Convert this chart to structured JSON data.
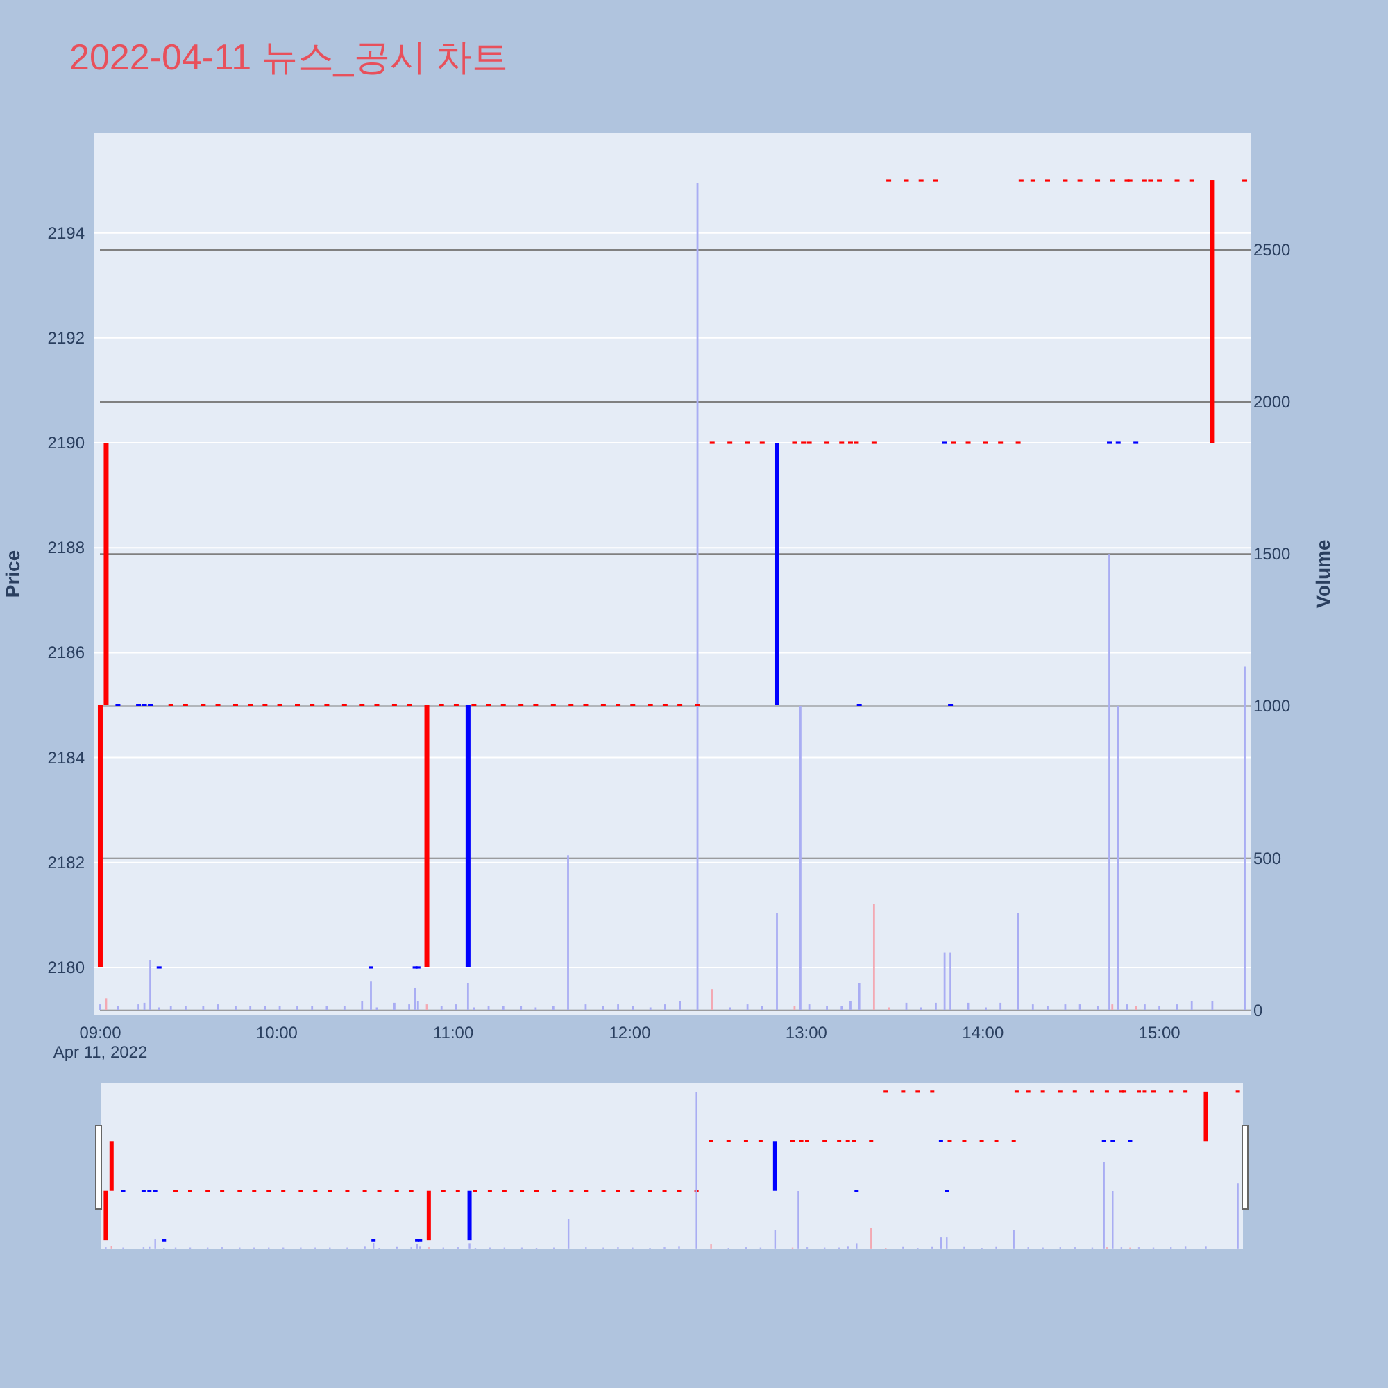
{
  "chart_data": {
    "type": "candlestick",
    "title": "2022-04-11 뉴스_공시 차트",
    "ylabel": "Price",
    "y2label": "Volume",
    "xlim": [
      "2022-04-11T08:58",
      "2022-04-11T15:31"
    ],
    "xticks": [
      {
        "value": "2022-04-11T09:00",
        "label": "09:00"
      },
      {
        "value": "2022-04-11T10:00",
        "label": "10:00"
      },
      {
        "value": "2022-04-11T11:00",
        "label": "11:00"
      },
      {
        "value": "2022-04-11T12:00",
        "label": "12:00"
      },
      {
        "value": "2022-04-11T13:00",
        "label": "13:00"
      },
      {
        "value": "2022-04-11T14:00",
        "label": "14:00"
      },
      {
        "value": "2022-04-11T15:00",
        "label": "15:00"
      }
    ],
    "ylim": [
      2179.1,
      2195.9
    ],
    "yticks": [
      2180,
      2182,
      2184,
      2186,
      2188,
      2190,
      2192,
      2194
    ],
    "y2lim": [
      -14,
      2883
    ],
    "y2ticks": [
      0,
      500,
      1000,
      1500,
      2000,
      2500
    ],
    "grid": "y",
    "annotations": [
      "Apr 11, 2022"
    ],
    "series": [
      {
        "type": "candlestick",
        "x": [
          "2022-04-11T09:00",
          "2022-04-11T09:02",
          "2022-04-11T09:06",
          "2022-04-11T09:13",
          "2022-04-11T09:15",
          "2022-04-11T09:17",
          "2022-04-11T09:20",
          "2022-04-11T09:24",
          "2022-04-11T09:29",
          "2022-04-11T09:35",
          "2022-04-11T09:40",
          "2022-04-11T09:46",
          "2022-04-11T09:51",
          "2022-04-11T09:56",
          "2022-04-11T10:01",
          "2022-04-11T10:07",
          "2022-04-11T10:12",
          "2022-04-11T10:17",
          "2022-04-11T10:23",
          "2022-04-11T10:29",
          "2022-04-11T10:32",
          "2022-04-11T10:34",
          "2022-04-11T10:40",
          "2022-04-11T10:45",
          "2022-04-11T10:47",
          "2022-04-11T10:48",
          "2022-04-11T10:51",
          "2022-04-11T10:56",
          "2022-04-11T11:01",
          "2022-04-11T11:05",
          "2022-04-11T11:07",
          "2022-04-11T11:12",
          "2022-04-11T11:17",
          "2022-04-11T11:23",
          "2022-04-11T11:28",
          "2022-04-11T11:34",
          "2022-04-11T11:40",
          "2022-04-11T11:45",
          "2022-04-11T11:51",
          "2022-04-11T11:56",
          "2022-04-11T12:01",
          "2022-04-11T12:07",
          "2022-04-11T12:12",
          "2022-04-11T12:17",
          "2022-04-11T12:23",
          "2022-04-11T12:28",
          "2022-04-11T12:34",
          "2022-04-11T12:40",
          "2022-04-11T12:45",
          "2022-04-11T12:50",
          "2022-04-11T12:56",
          "2022-04-11T12:59",
          "2022-04-11T13:01",
          "2022-04-11T13:07",
          "2022-04-11T13:12",
          "2022-04-11T13:15",
          "2022-04-11T13:17",
          "2022-04-11T13:18",
          "2022-04-11T13:23",
          "2022-04-11T13:28",
          "2022-04-11T13:34",
          "2022-04-11T13:39",
          "2022-04-11T13:44",
          "2022-04-11T13:47",
          "2022-04-11T13:49",
          "2022-04-11T13:50",
          "2022-04-11T13:55",
          "2022-04-11T14:01",
          "2022-04-11T14:06",
          "2022-04-11T14:12",
          "2022-04-11T14:13",
          "2022-04-11T14:17",
          "2022-04-11T14:22",
          "2022-04-11T14:28",
          "2022-04-11T14:33",
          "2022-04-11T14:39",
          "2022-04-11T14:43",
          "2022-04-11T14:44",
          "2022-04-11T14:46",
          "2022-04-11T14:49",
          "2022-04-11T14:50",
          "2022-04-11T14:52",
          "2022-04-11T14:55",
          "2022-04-11T14:57",
          "2022-04-11T15:00",
          "2022-04-11T15:06",
          "2022-04-11T15:11",
          "2022-04-11T15:18",
          "2022-04-11T15:29"
        ],
        "ohlc": [
          [
            2180,
            2185,
            2180,
            2185
          ],
          [
            2185,
            2190,
            2185,
            2190
          ],
          [
            2185,
            2185,
            2185,
            2185
          ],
          [
            2185,
            2185,
            2185,
            2185
          ],
          [
            2185,
            2185,
            2185,
            2185
          ],
          [
            2185,
            2185,
            2185,
            2185
          ],
          [
            2180,
            2180,
            2180,
            2180
          ],
          [
            2185,
            2185,
            2185,
            2185
          ],
          [
            2185,
            2185,
            2185,
            2185
          ],
          [
            2185,
            2185,
            2185,
            2185
          ],
          [
            2185,
            2185,
            2185,
            2185
          ],
          [
            2185,
            2185,
            2185,
            2185
          ],
          [
            2185,
            2185,
            2185,
            2185
          ],
          [
            2185,
            2185,
            2185,
            2185
          ],
          [
            2185,
            2185,
            2185,
            2185
          ],
          [
            2185,
            2185,
            2185,
            2185
          ],
          [
            2185,
            2185,
            2185,
            2185
          ],
          [
            2185,
            2185,
            2185,
            2185
          ],
          [
            2185,
            2185,
            2185,
            2185
          ],
          [
            2185,
            2185,
            2185,
            2185
          ],
          [
            2180,
            2180,
            2180,
            2180
          ],
          [
            2185,
            2185,
            2185,
            2185
          ],
          [
            2185,
            2185,
            2185,
            2185
          ],
          [
            2185,
            2185,
            2185,
            2185
          ],
          [
            2180,
            2180,
            2180,
            2180
          ],
          [
            2180,
            2180,
            2180,
            2180
          ],
          [
            2180,
            2185,
            2180,
            2185
          ],
          [
            2185,
            2185,
            2185,
            2185
          ],
          [
            2185,
            2185,
            2185,
            2185
          ],
          [
            2185,
            2185,
            2180,
            2180
          ],
          [
            2185,
            2185,
            2185,
            2185
          ],
          [
            2185,
            2185,
            2185,
            2185
          ],
          [
            2185,
            2185,
            2185,
            2185
          ],
          [
            2185,
            2185,
            2185,
            2185
          ],
          [
            2185,
            2185,
            2185,
            2185
          ],
          [
            2185,
            2185,
            2185,
            2185
          ],
          [
            2185,
            2185,
            2185,
            2185
          ],
          [
            2185,
            2185,
            2185,
            2185
          ],
          [
            2185,
            2185,
            2185,
            2185
          ],
          [
            2185,
            2185,
            2185,
            2185
          ],
          [
            2185,
            2185,
            2185,
            2185
          ],
          [
            2185,
            2185,
            2185,
            2185
          ],
          [
            2185,
            2185,
            2185,
            2185
          ],
          [
            2185,
            2185,
            2185,
            2185
          ],
          [
            2185,
            2185,
            2185,
            2185
          ],
          [
            2190,
            2190,
            2190,
            2190
          ],
          [
            2190,
            2190,
            2190,
            2190
          ],
          [
            2190,
            2190,
            2190,
            2190
          ],
          [
            2190,
            2190,
            2190,
            2190
          ],
          [
            2190,
            2190,
            2185,
            2185
          ],
          [
            2190,
            2190,
            2190,
            2190
          ],
          [
            2190,
            2190,
            2190,
            2190
          ],
          [
            2190,
            2190,
            2190,
            2190
          ],
          [
            2190,
            2190,
            2190,
            2190
          ],
          [
            2190,
            2190,
            2190,
            2190
          ],
          [
            2190,
            2190,
            2190,
            2190
          ],
          [
            2190,
            2190,
            2190,
            2190
          ],
          [
            2185,
            2185,
            2185,
            2185
          ],
          [
            2190,
            2190,
            2190,
            2190
          ],
          [
            2195,
            2195,
            2195,
            2195
          ],
          [
            2195,
            2195,
            2195,
            2195
          ],
          [
            2195,
            2195,
            2195,
            2195
          ],
          [
            2195,
            2195,
            2195,
            2195
          ],
          [
            2190,
            2190,
            2190,
            2190
          ],
          [
            2185,
            2185,
            2185,
            2185
          ],
          [
            2190,
            2190,
            2190,
            2190
          ],
          [
            2190,
            2190,
            2190,
            2190
          ],
          [
            2190,
            2190,
            2190,
            2190
          ],
          [
            2190,
            2190,
            2190,
            2190
          ],
          [
            2190,
            2190,
            2190,
            2190
          ],
          [
            2195,
            2195,
            2195,
            2195
          ],
          [
            2195,
            2195,
            2195,
            2195
          ],
          [
            2195,
            2195,
            2195,
            2195
          ],
          [
            2195,
            2195,
            2195,
            2195
          ],
          [
            2195,
            2195,
            2195,
            2195
          ],
          [
            2195,
            2195,
            2195,
            2195
          ],
          [
            2190,
            2190,
            2190,
            2190
          ],
          [
            2195,
            2195,
            2195,
            2195
          ],
          [
            2190,
            2190,
            2190,
            2190
          ],
          [
            2195,
            2195,
            2195,
            2195
          ],
          [
            2195,
            2195,
            2195,
            2195
          ],
          [
            2190,
            2190,
            2190,
            2190
          ],
          [
            2195,
            2195,
            2195,
            2195
          ],
          [
            2195,
            2195,
            2195,
            2195
          ],
          [
            2195,
            2195,
            2195,
            2195
          ],
          [
            2195,
            2195,
            2195,
            2195
          ],
          [
            2195,
            2195,
            2195,
            2195
          ],
          [
            2190,
            2195,
            2190,
            2195
          ],
          [
            2195,
            2195,
            2195,
            2195
          ]
        ],
        "colors": [
          "#ff0000",
          "#ff0000",
          "#0000ff",
          "#0000ff",
          "#0000ff",
          "#0000ff",
          "#0000ff",
          "#ff0000",
          "#ff0000",
          "#ff0000",
          "#ff0000",
          "#ff0000",
          "#ff0000",
          "#ff0000",
          "#ff0000",
          "#ff0000",
          "#ff0000",
          "#ff0000",
          "#ff0000",
          "#ff0000",
          "#0000ff",
          "#ff0000",
          "#ff0000",
          "#ff0000",
          "#0000ff",
          "#0000ff",
          "#ff0000",
          "#ff0000",
          "#ff0000",
          "#0000ff",
          "#ff0000",
          "#ff0000",
          "#ff0000",
          "#ff0000",
          "#ff0000",
          "#ff0000",
          "#ff0000",
          "#ff0000",
          "#ff0000",
          "#ff0000",
          "#ff0000",
          "#ff0000",
          "#ff0000",
          "#ff0000",
          "#ff0000",
          "#ff0000",
          "#ff0000",
          "#ff0000",
          "#ff0000",
          "#0000ff",
          "#ff0000",
          "#ff0000",
          "#ff0000",
          "#ff0000",
          "#ff0000",
          "#ff0000",
          "#ff0000",
          "#0000ff",
          "#ff0000",
          "#ff0000",
          "#ff0000",
          "#ff0000",
          "#ff0000",
          "#0000ff",
          "#0000ff",
          "#ff0000",
          "#ff0000",
          "#ff0000",
          "#ff0000",
          "#ff0000",
          "#ff0000",
          "#ff0000",
          "#ff0000",
          "#ff0000",
          "#ff0000",
          "#ff0000",
          "#0000ff",
          "#ff0000",
          "#0000ff",
          "#ff0000",
          "#ff0000",
          "#0000ff",
          "#ff0000",
          "#ff0000",
          "#ff0000",
          "#ff0000",
          "#ff0000",
          "#ff0000",
          "#ff0000"
        ]
      },
      {
        "type": "bar",
        "axis": "y2",
        "x": [
          "2022-04-11T09:00",
          "2022-04-11T09:02",
          "2022-04-11T09:06",
          "2022-04-11T09:13",
          "2022-04-11T09:15",
          "2022-04-11T09:17",
          "2022-04-11T09:20",
          "2022-04-11T09:24",
          "2022-04-11T09:29",
          "2022-04-11T09:35",
          "2022-04-11T09:40",
          "2022-04-11T09:46",
          "2022-04-11T09:51",
          "2022-04-11T09:56",
          "2022-04-11T10:01",
          "2022-04-11T10:07",
          "2022-04-11T10:12",
          "2022-04-11T10:17",
          "2022-04-11T10:23",
          "2022-04-11T10:29",
          "2022-04-11T10:32",
          "2022-04-11T10:34",
          "2022-04-11T10:40",
          "2022-04-11T10:45",
          "2022-04-11T10:47",
          "2022-04-11T10:48",
          "2022-04-11T10:51",
          "2022-04-11T10:56",
          "2022-04-11T11:01",
          "2022-04-11T11:05",
          "2022-04-11T11:07",
          "2022-04-11T11:12",
          "2022-04-11T11:17",
          "2022-04-11T11:23",
          "2022-04-11T11:28",
          "2022-04-11T11:34",
          "2022-04-11T11:39",
          "2022-04-11T11:45",
          "2022-04-11T11:51",
          "2022-04-11T11:56",
          "2022-04-11T12:01",
          "2022-04-11T12:07",
          "2022-04-11T12:12",
          "2022-04-11T12:17",
          "2022-04-11T12:23",
          "2022-04-11T12:28",
          "2022-04-11T12:34",
          "2022-04-11T12:40",
          "2022-04-11T12:45",
          "2022-04-11T12:50",
          "2022-04-11T12:56",
          "2022-04-11T12:58",
          "2022-04-11T13:01",
          "2022-04-11T13:07",
          "2022-04-11T13:12",
          "2022-04-11T13:15",
          "2022-04-11T13:18",
          "2022-04-11T13:23",
          "2022-04-11T13:28",
          "2022-04-11T13:34",
          "2022-04-11T13:39",
          "2022-04-11T13:44",
          "2022-04-11T13:47",
          "2022-04-11T13:49",
          "2022-04-11T13:55",
          "2022-04-11T14:01",
          "2022-04-11T14:06",
          "2022-04-11T14:12",
          "2022-04-11T14:17",
          "2022-04-11T14:22",
          "2022-04-11T14:28",
          "2022-04-11T14:33",
          "2022-04-11T14:39",
          "2022-04-11T14:43",
          "2022-04-11T14:44",
          "2022-04-11T14:46",
          "2022-04-11T14:49",
          "2022-04-11T14:52",
          "2022-04-11T14:55",
          "2022-04-11T15:00",
          "2022-04-11T15:06",
          "2022-04-11T15:11",
          "2022-04-11T15:18",
          "2022-04-11T15:29"
        ],
        "values": [
          20,
          40,
          15,
          20,
          25,
          165,
          10,
          15,
          15,
          15,
          20,
          15,
          15,
          15,
          15,
          15,
          15,
          15,
          15,
          30,
          95,
          10,
          25,
          20,
          75,
          30,
          20,
          15,
          20,
          90,
          10,
          15,
          15,
          15,
          10,
          15,
          510,
          20,
          15,
          20,
          15,
          10,
          20,
          30,
          2720,
          70,
          10,
          20,
          15,
          320,
          15,
          1000,
          20,
          15,
          15,
          30,
          90,
          350,
          10,
          25,
          10,
          25,
          190,
          190,
          25,
          10,
          25,
          320,
          20,
          15,
          20,
          20,
          15,
          1500,
          20,
          1000,
          20,
          15,
          20,
          15,
          20,
          30,
          30,
          1130
        ],
        "colors": [
          "#a9adf3",
          "#f3a9b3",
          "#a9adf3",
          "#a9adf3",
          "#a9adf3",
          "#a9adf3",
          "#a9adf3",
          "#a9adf3",
          "#a9adf3",
          "#a9adf3",
          "#a9adf3",
          "#a9adf3",
          "#a9adf3",
          "#a9adf3",
          "#a9adf3",
          "#a9adf3",
          "#a9adf3",
          "#a9adf3",
          "#a9adf3",
          "#a9adf3",
          "#a9adf3",
          "#a9adf3",
          "#a9adf3",
          "#a9adf3",
          "#a9adf3",
          "#a9adf3",
          "#f3a9b3",
          "#a9adf3",
          "#a9adf3",
          "#a9adf3",
          "#a9adf3",
          "#a9adf3",
          "#a9adf3",
          "#a9adf3",
          "#a9adf3",
          "#a9adf3",
          "#a9adf3",
          "#a9adf3",
          "#a9adf3",
          "#a9adf3",
          "#a9adf3",
          "#a9adf3",
          "#a9adf3",
          "#a9adf3",
          "#a9adf3",
          "#f3a9b3",
          "#a9adf3",
          "#a9adf3",
          "#a9adf3",
          "#a9adf3",
          "#f3a9b3",
          "#a9adf3",
          "#a9adf3",
          "#a9adf3",
          "#a9adf3",
          "#a9adf3",
          "#a9adf3",
          "#f3a9b3",
          "#f3a9b3",
          "#a9adf3",
          "#a9adf3",
          "#a9adf3",
          "#a9adf3",
          "#a9adf3",
          "#a9adf3",
          "#a9adf3",
          "#a9adf3",
          "#a9adf3",
          "#a9adf3",
          "#a9adf3",
          "#a9adf3",
          "#a9adf3",
          "#a9adf3",
          "#a9adf3",
          "#f3a9b3",
          "#a9adf3",
          "#a9adf3",
          "#f3a9b3",
          "#a9adf3",
          "#a9adf3",
          "#a9adf3",
          "#a9adf3",
          "#a9adf3",
          "#a9adf3"
        ]
      }
    ]
  }
}
